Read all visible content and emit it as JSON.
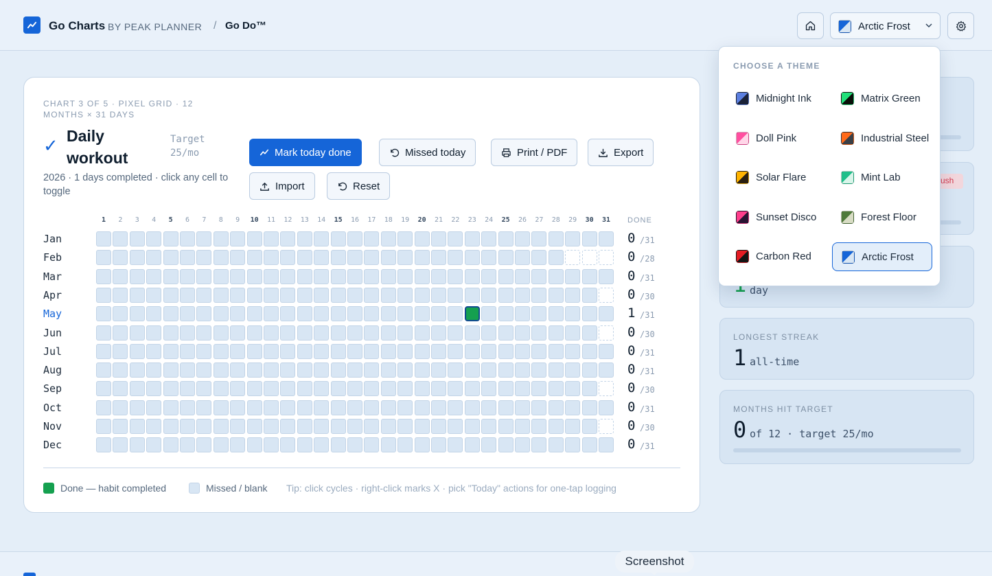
{
  "header": {
    "brand": "Go Charts",
    "brand_sub": "BY PEAK PLANNER",
    "separator": "/",
    "crumb": "Go Do™",
    "theme_selected": "Arctic Frost"
  },
  "card": {
    "meta": "CHART 3 OF 5 · PIXEL GRID · 12 MONTHS × 31 DAYS",
    "check": "✓",
    "title": "Daily workout",
    "target": "Target 25/mo",
    "subtitle": "2026 · 1 days completed · click any cell to toggle",
    "buttons": {
      "mark": "Mark today done",
      "missed": "Missed today",
      "print": "Print / PDF",
      "export": "Export",
      "import": "Import",
      "reset": "Reset"
    },
    "done_header": "DONE",
    "legend_done": "Done — habit completed",
    "legend_missed": "Missed / blank",
    "tip": "Tip: click cycles · right-click marks X · pick \"Today\" actions for one-tap logging"
  },
  "grid": {
    "days": 31,
    "bold_days": [
      1,
      5,
      10,
      15,
      20,
      25,
      30,
      31
    ],
    "current_month": "May",
    "months": [
      {
        "name": "Jan",
        "days": 31,
        "done": 0,
        "done_days": []
      },
      {
        "name": "Feb",
        "days": 28,
        "done": 0,
        "done_days": []
      },
      {
        "name": "Mar",
        "days": 31,
        "done": 0,
        "done_days": []
      },
      {
        "name": "Apr",
        "days": 30,
        "done": 0,
        "done_days": []
      },
      {
        "name": "May",
        "days": 31,
        "done": 1,
        "done_days": [
          23
        ]
      },
      {
        "name": "Jun",
        "days": 30,
        "done": 0,
        "done_days": []
      },
      {
        "name": "Jul",
        "days": 31,
        "done": 0,
        "done_days": []
      },
      {
        "name": "Aug",
        "days": 31,
        "done": 0,
        "done_days": []
      },
      {
        "name": "Sep",
        "days": 30,
        "done": 0,
        "done_days": []
      },
      {
        "name": "Oct",
        "days": 31,
        "done": 0,
        "done_days": []
      },
      {
        "name": "Nov",
        "days": 30,
        "done": 0,
        "done_days": []
      },
      {
        "name": "Dec",
        "days": 31,
        "done": 0,
        "done_days": []
      }
    ]
  },
  "stats": {
    "badge_partial": "ush",
    "current_streak_partial": {
      "value": "1",
      "unit": "day"
    },
    "longest": {
      "label": "LONGEST STREAK",
      "value": "1",
      "unit": "all-time"
    },
    "months_hit": {
      "label": "MONTHS HIT TARGET",
      "value": "0",
      "unit": "of 12 · target 25/mo"
    }
  },
  "dropdown": {
    "title": "CHOOSE A THEME",
    "options": [
      {
        "label": "Midnight Ink",
        "c1": "#5b7fe0",
        "c2": "#1a2238",
        "active": false
      },
      {
        "label": "Matrix Green",
        "c1": "#22e07a",
        "c2": "#0a0f0a",
        "active": false
      },
      {
        "label": "Doll Pink",
        "c1": "#ff4fa0",
        "c2": "#ffd6e8",
        "active": false
      },
      {
        "label": "Industrial Steel",
        "c1": "#ff6a1a",
        "c2": "#3a3f46",
        "active": false
      },
      {
        "label": "Solar Flare",
        "c1": "#ffb300",
        "c2": "#2a1f10",
        "active": false
      },
      {
        "label": "Mint Lab",
        "c1": "#1fbf8a",
        "c2": "#d9f5ea",
        "active": false
      },
      {
        "label": "Sunset Disco",
        "c1": "#ff3d8b",
        "c2": "#2a1433",
        "active": false
      },
      {
        "label": "Forest Floor",
        "c1": "#4f7a3a",
        "c2": "#d8dcc4",
        "active": false
      },
      {
        "label": "Carbon Red",
        "c1": "#e51b23",
        "c2": "#141414",
        "active": false
      },
      {
        "label": "Arctic Frost",
        "c1": "#1565d8",
        "c2": "#d8e6f4",
        "active": true
      }
    ]
  },
  "tooltip": "Screenshot",
  "colors": {
    "accent": "#1565d8",
    "done": "#15a04f",
    "missed": "#d8e6f4"
  }
}
